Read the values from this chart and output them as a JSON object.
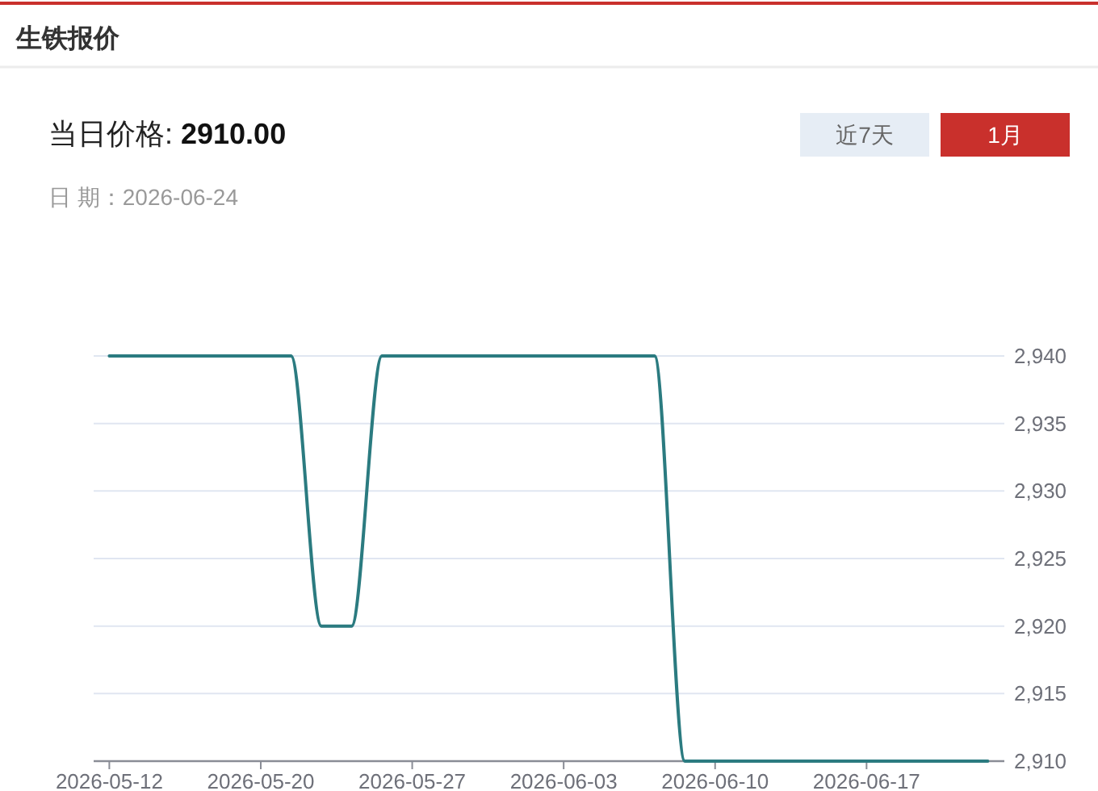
{
  "chart_data": {
    "type": "line",
    "title": "生铁报价",
    "annotations": [
      "当日价格:",
      "2910.00",
      "日 期：2026-06-24",
      "近7天",
      "1月"
    ],
    "categories": [
      "2026-05-12",
      null,
      null,
      null,
      null,
      "2026-05-20",
      null,
      null,
      null,
      null,
      "2026-05-27",
      null,
      null,
      null,
      null,
      "2026-06-03",
      null,
      null,
      null,
      null,
      "2026-06-10",
      null,
      null,
      null,
      null,
      "2026-06-17",
      null,
      null,
      null,
      null
    ],
    "series": [
      {
        "color": "#2b7b80",
        "values": [
          2940,
          2940,
          2940,
          2940,
          2940,
          2940,
          2940,
          2920,
          2920,
          2940,
          2940,
          2940,
          2940,
          2940,
          2940,
          2940,
          2940,
          2940,
          2940,
          2910,
          2910,
          2910,
          2910,
          2910,
          2910,
          2910,
          2910,
          2910,
          2910,
          2910
        ]
      }
    ],
    "ylim": [
      2910,
      2940
    ],
    "yticks": [
      {
        "value": 2910,
        "label": "2,910"
      },
      {
        "value": 2915,
        "label": "2,915"
      },
      {
        "value": 2920,
        "label": "2,920"
      },
      {
        "value": 2925,
        "label": "2,925"
      },
      {
        "value": 2930,
        "label": "2,930"
      },
      {
        "value": 2935,
        "label": "2,935"
      },
      {
        "value": 2940,
        "label": "2,940"
      }
    ],
    "grid": "y",
    "line_style": "solid"
  }
}
